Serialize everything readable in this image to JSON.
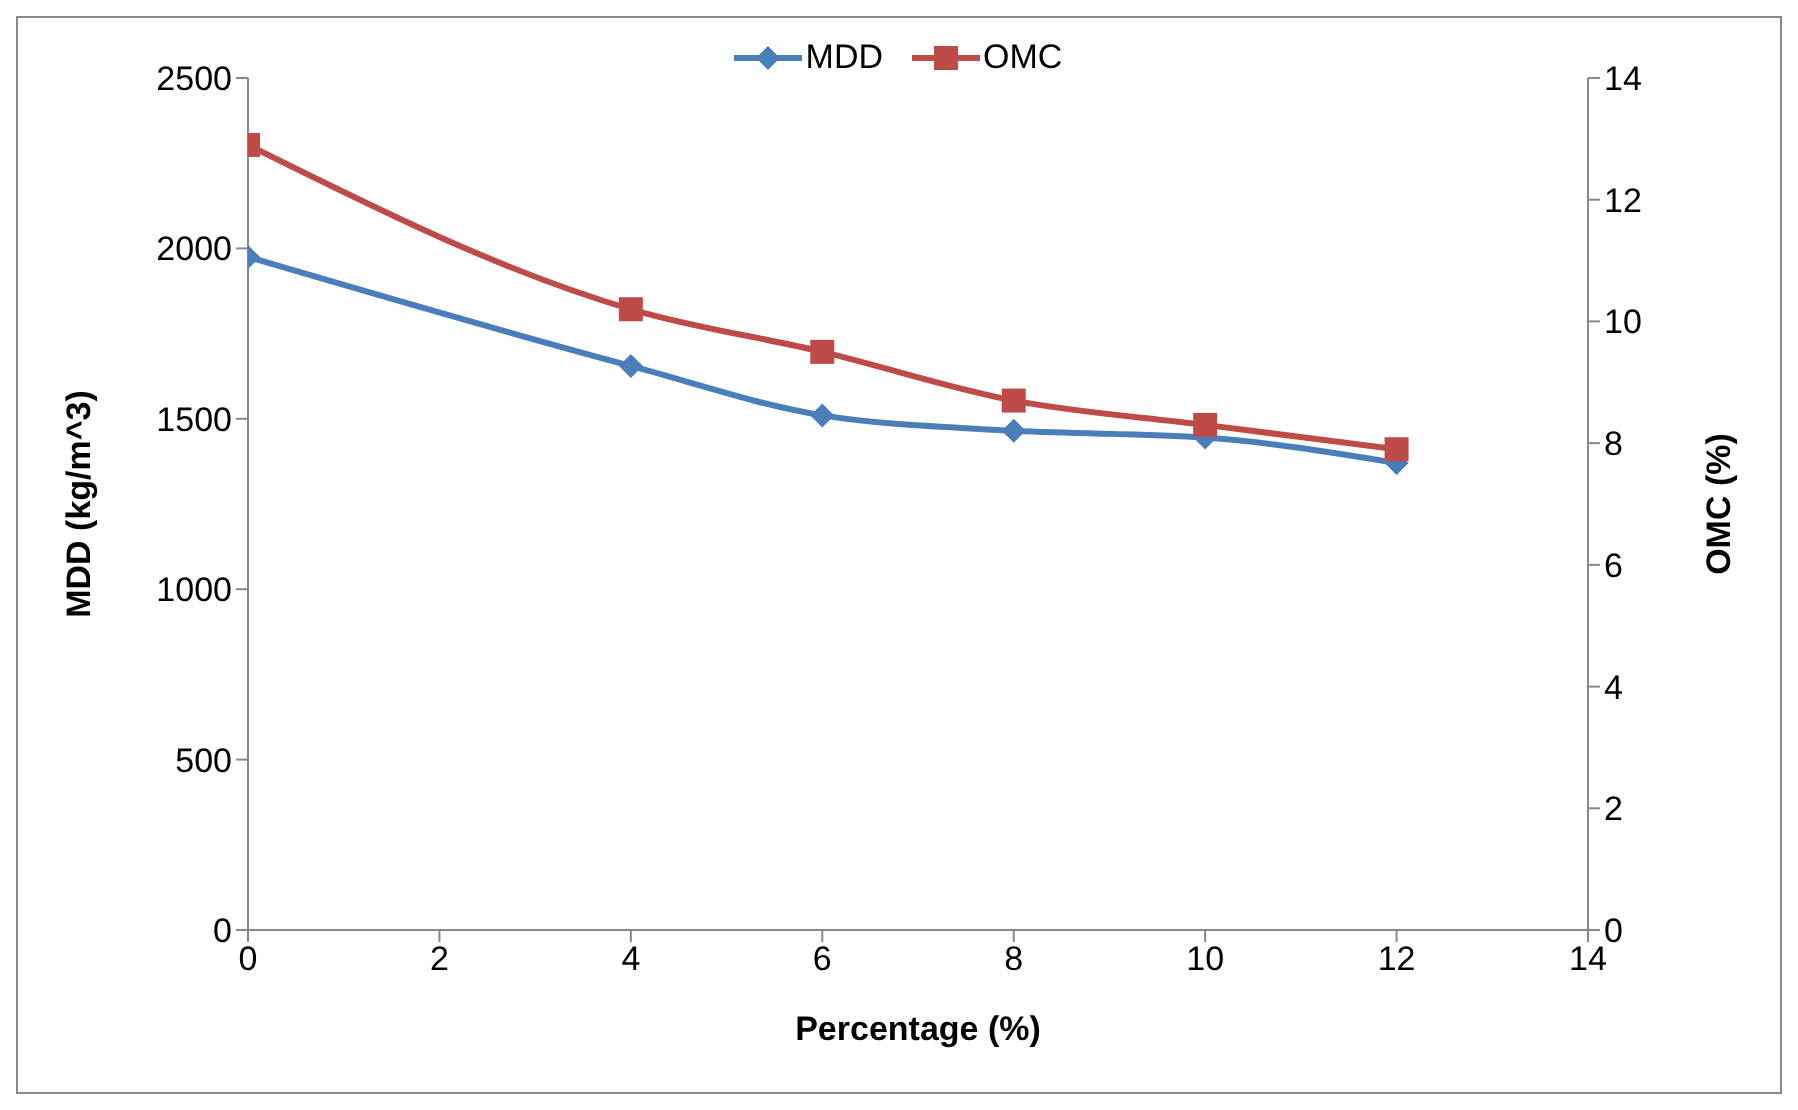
{
  "chart_data": {
    "type": "line",
    "xlabel": "Percentage (%)",
    "ylabel": "MDD (kg/m^3)",
    "y2label": "OMC (%)",
    "x": [
      0,
      4,
      6,
      8,
      10,
      12
    ],
    "series": [
      {
        "name": "MDD",
        "color": "#4a7ebb",
        "marker": "diamond",
        "values": [
          1975,
          1655,
          1510,
          1465,
          1445,
          1370
        ]
      },
      {
        "name": "OMC",
        "color": "#be4b48",
        "marker": "square",
        "axis": "y2",
        "values": [
          12.9,
          10.2,
          9.5,
          8.7,
          8.3,
          7.9
        ]
      }
    ],
    "xlim": [
      0,
      14
    ],
    "xticks": [
      0,
      2,
      4,
      6,
      8,
      10,
      12,
      14
    ],
    "ylim": [
      0,
      2500
    ],
    "yticks": [
      0,
      500,
      1000,
      1500,
      2000,
      2500
    ],
    "y2lim": [
      0,
      14
    ],
    "y2ticks": [
      0,
      2,
      4,
      6,
      8,
      10,
      12,
      14
    ],
    "grid": false,
    "legend": "top",
    "line_style": "solid"
  }
}
